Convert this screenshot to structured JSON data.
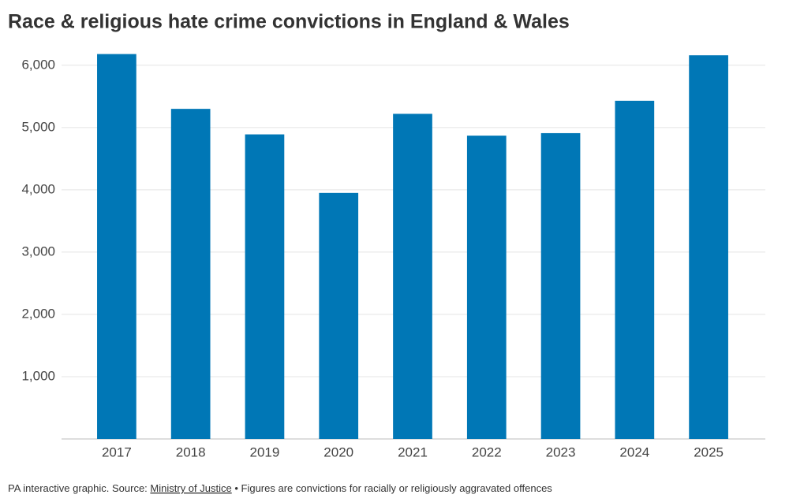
{
  "chart_data": {
    "type": "bar",
    "title": "Race & religious hate crime convictions in England & Wales",
    "categories": [
      "2017",
      "2018",
      "2019",
      "2020",
      "2021",
      "2022",
      "2023",
      "2024",
      "2025"
    ],
    "values": [
      6180,
      5300,
      4890,
      3950,
      5220,
      4870,
      4910,
      5430,
      6160
    ],
    "color": "#0077b6",
    "ylim": [
      0,
      6200
    ],
    "yticks": [
      {
        "value": 1000,
        "label": "1,000"
      },
      {
        "value": 2000,
        "label": "2,000"
      },
      {
        "value": 3000,
        "label": "3,000"
      },
      {
        "value": 4000,
        "label": "4,000"
      },
      {
        "value": 5000,
        "label": "5,000"
      },
      {
        "value": 6000,
        "label": "6,000"
      }
    ],
    "grid": true,
    "source_prefix": "PA interactive graphic. Source: ",
    "source": "Ministry of Justice",
    "note": " • Figures are convictions for racially or religiously aggravated offences"
  }
}
